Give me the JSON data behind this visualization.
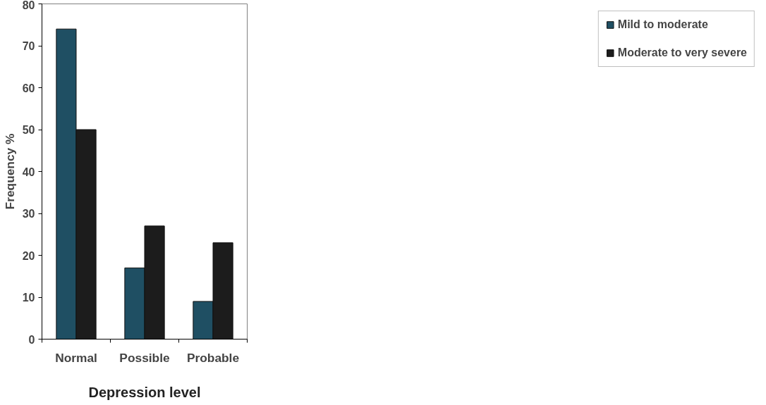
{
  "chart_data": {
    "type": "bar",
    "xlabel": "Depression level",
    "ylabel": "Frequency %",
    "categories": [
      "Normal",
      "Possible",
      "Probable"
    ],
    "series": [
      {
        "name": "Mild to moderate",
        "color": "#1f4f63",
        "values": [
          74,
          17,
          9
        ]
      },
      {
        "name": "Moderate to very severe",
        "color": "#1c1c1c",
        "values": [
          50,
          27,
          23
        ]
      }
    ],
    "ylim": [
      0,
      80
    ],
    "yticks": [
      0,
      10,
      20,
      30,
      40,
      50,
      60,
      70,
      80
    ],
    "grid": false,
    "legend": "right"
  }
}
